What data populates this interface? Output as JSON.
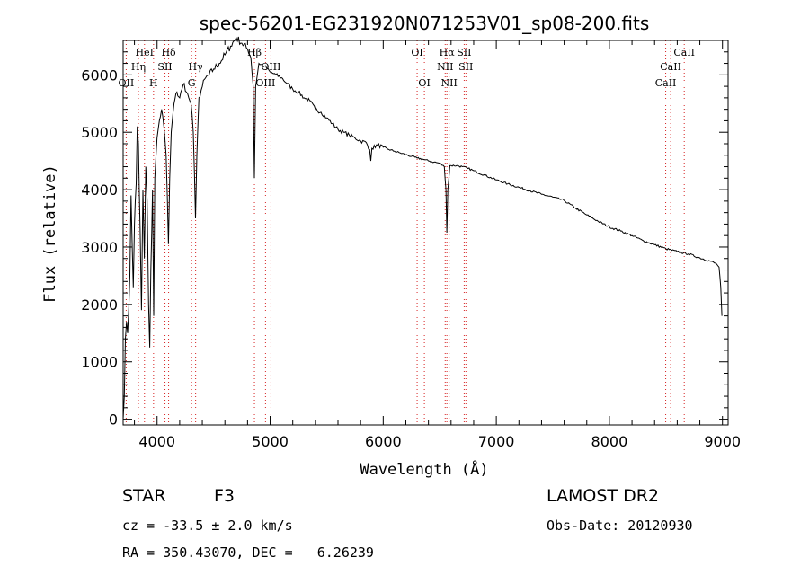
{
  "chart_data": {
    "type": "line",
    "title": "spec-56201-EG231920N071253V01_sp08-200.fits",
    "xlabel": "Wavelength (Å)",
    "ylabel": "Flux (relative)",
    "xlim": [
      3700,
      9050
    ],
    "ylim": [
      -100,
      6600
    ],
    "x_ticks": [
      4000,
      5000,
      6000,
      7000,
      8000,
      9000
    ],
    "y_ticks": [
      0,
      1000,
      2000,
      3000,
      4000,
      5000,
      6000
    ],
    "grid": false,
    "series": [
      {
        "values": [
          [
            3700,
            0
          ],
          [
            3710,
            400
          ],
          [
            3720,
            1400
          ],
          [
            3730,
            1700
          ],
          [
            3740,
            1500
          ],
          [
            3760,
            2500
          ],
          [
            3770,
            3900
          ],
          [
            3780,
            3000
          ],
          [
            3790,
            2300
          ],
          [
            3800,
            3400
          ],
          [
            3815,
            4100
          ],
          [
            3825,
            5100
          ],
          [
            3835,
            4800
          ],
          [
            3850,
            3300
          ],
          [
            3862,
            1900
          ],
          [
            3875,
            4000
          ],
          [
            3888,
            2800
          ],
          [
            3900,
            4400
          ],
          [
            3912,
            3800
          ],
          [
            3925,
            2000
          ],
          [
            3935,
            1250
          ],
          [
            3945,
            2600
          ],
          [
            3960,
            4000
          ],
          [
            3970,
            1800
          ],
          [
            3980,
            4200
          ],
          [
            4000,
            4900
          ],
          [
            4020,
            5200
          ],
          [
            4040,
            5400
          ],
          [
            4060,
            5100
          ],
          [
            4080,
            4600
          ],
          [
            4090,
            3900
          ],
          [
            4101,
            3050
          ],
          [
            4112,
            4200
          ],
          [
            4125,
            5000
          ],
          [
            4150,
            5500
          ],
          [
            4175,
            5700
          ],
          [
            4200,
            5600
          ],
          [
            4220,
            5750
          ],
          [
            4240,
            5850
          ],
          [
            4260,
            5700
          ],
          [
            4280,
            5600
          ],
          [
            4300,
            5500
          ],
          [
            4320,
            5000
          ],
          [
            4330,
            4300
          ],
          [
            4340,
            3500
          ],
          [
            4352,
            4600
          ],
          [
            4370,
            5600
          ],
          [
            4400,
            5800
          ],
          [
            4430,
            5950
          ],
          [
            4460,
            6000
          ],
          [
            4500,
            6100
          ],
          [
            4550,
            6200
          ],
          [
            4600,
            6350
          ],
          [
            4650,
            6500
          ],
          [
            4700,
            6650
          ],
          [
            4750,
            6550
          ],
          [
            4800,
            6450
          ],
          [
            4830,
            6300
          ],
          [
            4850,
            5800
          ],
          [
            4861,
            4200
          ],
          [
            4872,
            5800
          ],
          [
            4900,
            6200
          ],
          [
            4950,
            6150
          ],
          [
            5000,
            6050
          ],
          [
            5050,
            6000
          ],
          [
            5100,
            5950
          ],
          [
            5150,
            5850
          ],
          [
            5200,
            5750
          ],
          [
            5250,
            5700
          ],
          [
            5300,
            5600
          ],
          [
            5350,
            5550
          ],
          [
            5400,
            5400
          ],
          [
            5450,
            5350
          ],
          [
            5500,
            5250
          ],
          [
            5550,
            5150
          ],
          [
            5600,
            5050
          ],
          [
            5650,
            5000
          ],
          [
            5700,
            4950
          ],
          [
            5750,
            4900
          ],
          [
            5800,
            4850
          ],
          [
            5850,
            4820
          ],
          [
            5880,
            4700
          ],
          [
            5890,
            4500
          ],
          [
            5900,
            4720
          ],
          [
            5950,
            4780
          ],
          [
            6000,
            4740
          ],
          [
            6050,
            4700
          ],
          [
            6100,
            4670
          ],
          [
            6150,
            4640
          ],
          [
            6200,
            4610
          ],
          [
            6250,
            4580
          ],
          [
            6300,
            4550
          ],
          [
            6350,
            4530
          ],
          [
            6400,
            4500
          ],
          [
            6450,
            4480
          ],
          [
            6500,
            4460
          ],
          [
            6540,
            4400
          ],
          [
            6555,
            4000
          ],
          [
            6563,
            3250
          ],
          [
            6571,
            4000
          ],
          [
            6590,
            4420
          ],
          [
            6650,
            4420
          ],
          [
            6700,
            4400
          ],
          [
            6750,
            4370
          ],
          [
            6800,
            4330
          ],
          [
            6900,
            4250
          ],
          [
            7000,
            4170
          ],
          [
            7100,
            4100
          ],
          [
            7200,
            4040
          ],
          [
            7300,
            3980
          ],
          [
            7400,
            3920
          ],
          [
            7500,
            3870
          ],
          [
            7600,
            3810
          ],
          [
            7700,
            3680
          ],
          [
            7800,
            3560
          ],
          [
            7900,
            3450
          ],
          [
            8000,
            3350
          ],
          [
            8100,
            3280
          ],
          [
            8200,
            3200
          ],
          [
            8300,
            3110
          ],
          [
            8400,
            3040
          ],
          [
            8500,
            2970
          ],
          [
            8600,
            2920
          ],
          [
            8700,
            2880
          ],
          [
            8800,
            2810
          ],
          [
            8900,
            2750
          ],
          [
            8950,
            2700
          ],
          [
            8970,
            2650
          ],
          [
            8985,
            2300
          ],
          [
            8995,
            1800
          ]
        ]
      }
    ],
    "line_markers": [
      {
        "label": "OII",
        "x": 3727,
        "row": 3
      },
      {
        "label": "Hη",
        "x": 3835,
        "row": 2
      },
      {
        "label": "HeI",
        "x": 3889,
        "row": 1
      },
      {
        "label": "H",
        "x": 3969,
        "row": 3
      },
      {
        "label": "SII",
        "x": 4070,
        "row": 2
      },
      {
        "label": "Hδ",
        "x": 4102,
        "row": 1
      },
      {
        "label": "G",
        "x": 4305,
        "row": 3
      },
      {
        "label": "Hγ",
        "x": 4341,
        "row": 2
      },
      {
        "label": "Hβ",
        "x": 4861,
        "row": 1
      },
      {
        "label": "OIII",
        "x": 4959,
        "row": 3
      },
      {
        "label": "OIII",
        "x": 5007,
        "row": 2
      },
      {
        "label": "OI",
        "x": 6300,
        "row": 1
      },
      {
        "label": "OI",
        "x": 6364,
        "row": 3
      },
      {
        "label": "NII",
        "x": 6548,
        "row": 2
      },
      {
        "label": "Hα",
        "x": 6563,
        "row": 1
      },
      {
        "label": "NII",
        "x": 6583,
        "row": 3
      },
      {
        "label": "SII",
        "x": 6716,
        "row": 1
      },
      {
        "label": "SII",
        "x": 6731,
        "row": 2
      },
      {
        "label": "CaII",
        "x": 8498,
        "row": 3
      },
      {
        "label": "CaII",
        "x": 8542,
        "row": 2
      },
      {
        "label": "CaII",
        "x": 8662,
        "row": 1
      }
    ],
    "marker_color": "#d62020"
  },
  "info": {
    "class": "STAR",
    "subclass": "F3",
    "survey": "LAMOST DR2",
    "cz": "cz = -33.5 ± 2.0 km/s",
    "obsdate": "Obs-Date: 20120930",
    "coords": "RA = 350.43070, DEC =   6.26239"
  }
}
